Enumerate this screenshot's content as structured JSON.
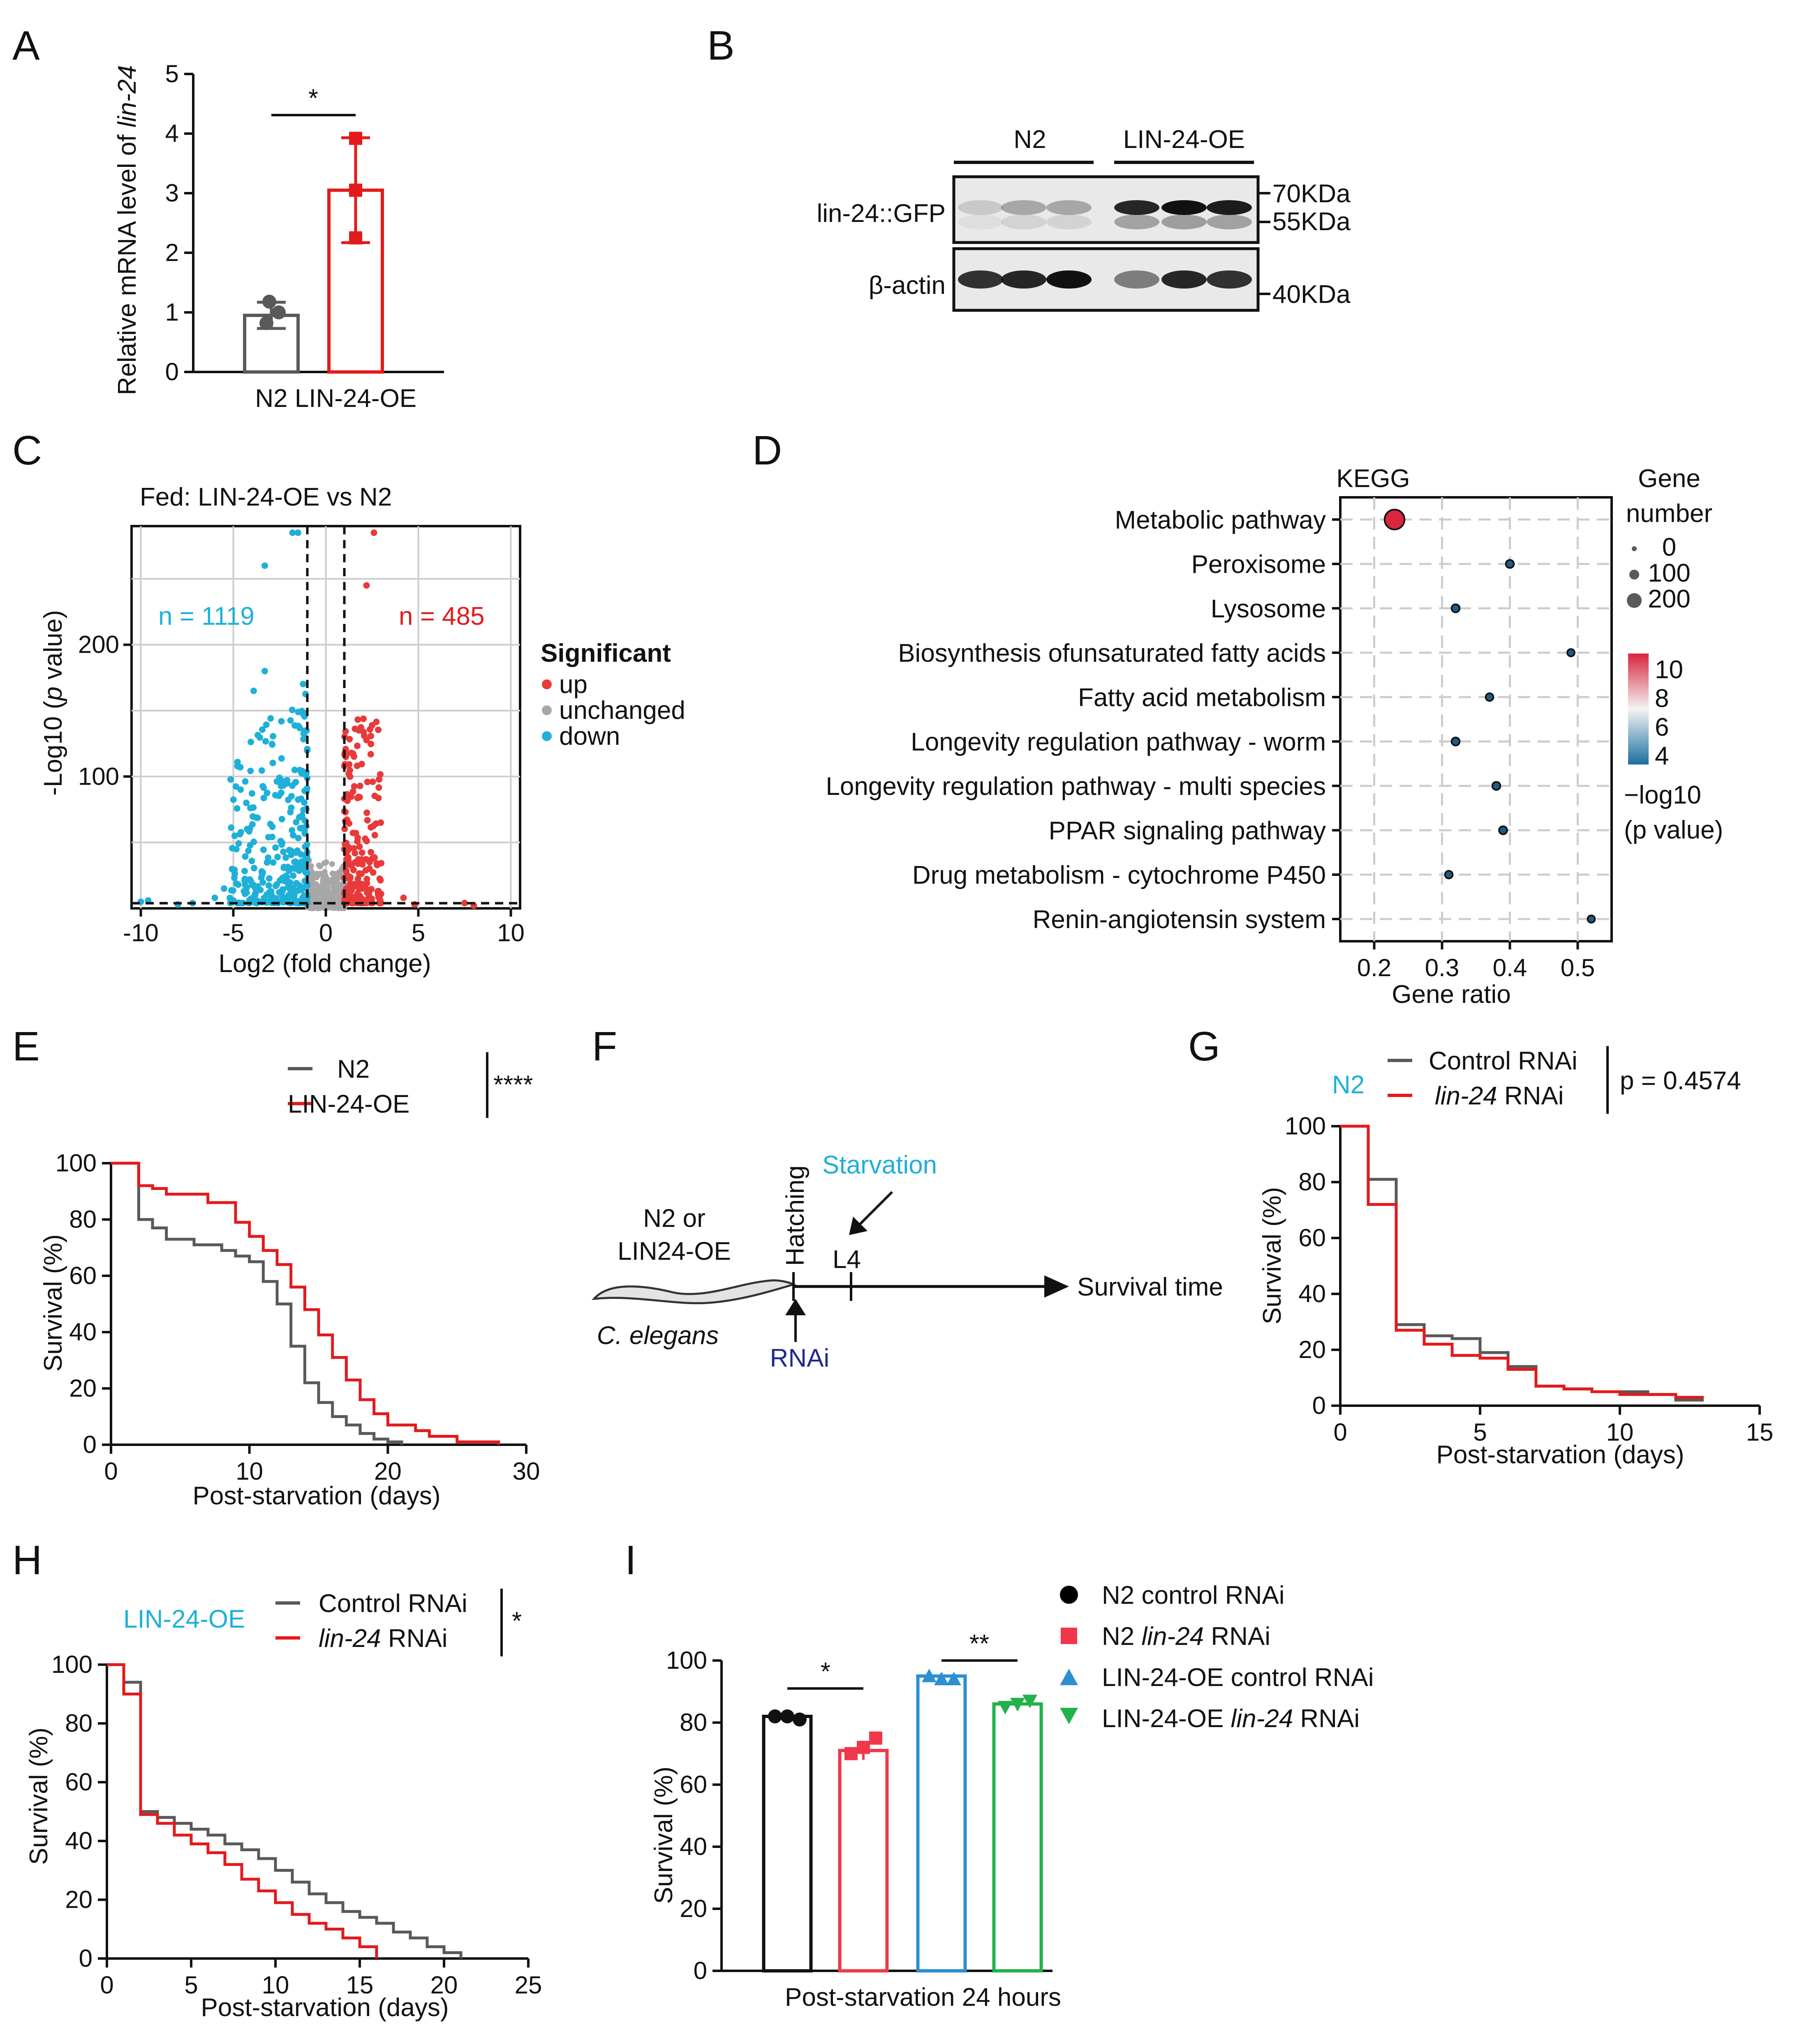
{
  "colors": {
    "n2": "#595959",
    "oe": "#e31a1c",
    "cyan": "#1fb0d8",
    "navy": "#1f2a8c",
    "green": "#21b24b",
    "blue": "#2b8fd1",
    "grid": "#cccccc"
  },
  "chart_data": [
    {
      "panel": "A",
      "type": "bar",
      "ylabel_prefix": "Relative mRNA level of ",
      "ylabel_italic": "lin-24",
      "categories": [
        "N2",
        "LIN-24-OE"
      ],
      "values": [
        0.95,
        3.05
      ],
      "errors": [
        0.22,
        0.88
      ],
      "points": [
        [
          0.82,
          1.0,
          1.18
        ],
        [
          2.25,
          3.05,
          3.92
        ]
      ],
      "ylim": [
        0,
        5
      ],
      "yticks": [
        "0",
        "1",
        "2",
        "3",
        "4",
        "5"
      ],
      "significance": "*"
    },
    {
      "panel": "B",
      "type": "western_blot",
      "groups": [
        "N2",
        "LIN-24-OE"
      ],
      "rows": [
        "lin-24::GFP",
        "β-actin"
      ],
      "markers": [
        "70KDa",
        "55KDa",
        "40KDa"
      ],
      "band_intensity": {
        "lin-24::GFP": [
          0.15,
          0.3,
          0.3,
          0.9,
          1.0,
          0.95
        ],
        "β-actin": [
          0.85,
          0.9,
          1.0,
          0.5,
          0.9,
          0.85
        ]
      }
    },
    {
      "panel": "C",
      "type": "scatter",
      "title": "Fed: LIN-24-OE vs N2",
      "xlabel": "Log2 (fold change)",
      "ylabel_prefix": "-Log10 (",
      "ylabel_italic": "p",
      "ylabel_suffix": " value)",
      "xlim": [
        -10.5,
        10.5
      ],
      "ylim": [
        0,
        290
      ],
      "xticks": [
        "-10",
        "-5",
        "0",
        "5",
        "10"
      ],
      "yticks": [
        "100",
        "200"
      ],
      "n_down": "n = 1119",
      "n_up": "n = 485",
      "legend_title": "Significant",
      "legend": [
        "up",
        "unchanged",
        "down"
      ],
      "thresholds": {
        "log2fc": [
          -1,
          1
        ],
        "neglog10p": 1.3
      }
    },
    {
      "panel": "D",
      "type": "dot",
      "title": "KEGG",
      "xlabel": "Gene ratio",
      "xlim": [
        0.15,
        0.55
      ],
      "xticks": [
        "0.2",
        "0.3",
        "0.4",
        "0.5"
      ],
      "categories": [
        "Metabolic pathway",
        "Peroxisome",
        "Lysosome",
        "Biosynthesis ofunsaturated fatty acids",
        "Fatty acid metabolism",
        "Longevity regulation pathway - worm",
        "Longevity regulation pathway - multi species",
        "PPAR signaling pathway",
        "Drug metabolism - cytochrome P450",
        "Renin-angiotensin system"
      ],
      "gene_ratio": [
        0.23,
        0.4,
        0.32,
        0.49,
        0.37,
        0.32,
        0.38,
        0.39,
        0.31,
        0.52
      ],
      "gene_number": [
        180,
        20,
        20,
        10,
        15,
        20,
        20,
        20,
        15,
        10
      ],
      "neglog10p": [
        10.5,
        4.5,
        4.5,
        4.0,
        4.0,
        4.0,
        4.0,
        4.0,
        4.0,
        4.0
      ],
      "size_legend_title": [
        "Gene",
        "number"
      ],
      "size_legend": [
        "0",
        "100",
        "200"
      ],
      "color_legend": [
        "10",
        "8",
        "6",
        "4"
      ],
      "color_legend_title": [
        "−log10",
        "(p value)"
      ]
    },
    {
      "panel": "E",
      "type": "line",
      "xlabel": "Post-starvation (days)",
      "ylabel": "Survival (%)",
      "xlim": [
        0,
        30
      ],
      "ylim": [
        0,
        100
      ],
      "xticks": [
        "0",
        "10",
        "20",
        "30"
      ],
      "yticks": [
        "0",
        "20",
        "40",
        "60",
        "80",
        "100"
      ],
      "significance": "****",
      "series": [
        {
          "name": "N2",
          "x": [
            0,
            2,
            3,
            4,
            6,
            8,
            9,
            10,
            11,
            12,
            13,
            14,
            15,
            16,
            17,
            18,
            19,
            20,
            21
          ],
          "y": [
            100,
            80,
            77,
            73,
            71,
            69,
            67,
            65,
            58,
            50,
            35,
            22,
            15,
            10,
            7,
            4,
            2,
            1,
            0
          ]
        },
        {
          "name": "LIN-24-OE",
          "x": [
            0,
            2,
            3,
            4,
            7,
            9,
            10,
            11,
            12,
            13,
            14,
            15,
            16,
            17,
            18,
            19,
            20,
            22,
            23,
            25,
            28
          ],
          "y": [
            100,
            92,
            91,
            89,
            86,
            79,
            74,
            69,
            64,
            56,
            48,
            39,
            31,
            23,
            16,
            11,
            7,
            5,
            3,
            1,
            0
          ]
        }
      ]
    },
    {
      "panel": "F",
      "type": "schematic",
      "worm_label": [
        "N2 or",
        "LIN24-OE"
      ],
      "species": "C. elegans",
      "hatching": "Hatching",
      "starvation": "Starvation",
      "stage": "L4",
      "rnai": "RNAi",
      "outcome": "Survival time"
    },
    {
      "panel": "G",
      "type": "line",
      "strain": "N2",
      "xlabel": "Post-starvation (days)",
      "ylabel": "Survival (%)",
      "xlim": [
        0,
        15
      ],
      "ylim": [
        0,
        100
      ],
      "xticks": [
        "0",
        "5",
        "10",
        "15"
      ],
      "yticks": [
        "0",
        "20",
        "40",
        "60",
        "80",
        "100"
      ],
      "pvalue": "p = 0.4574",
      "series": [
        {
          "name": "Control RNAi",
          "x": [
            0,
            1,
            2,
            3,
            4,
            5,
            6,
            7,
            8,
            9,
            10,
            11,
            12,
            13
          ],
          "y": [
            100,
            81,
            29,
            25,
            24,
            19,
            14,
            7,
            6,
            5,
            5,
            4,
            2,
            2
          ]
        },
        {
          "name": "lin-24 RNAi",
          "x": [
            0,
            1,
            2,
            3,
            4,
            5,
            6,
            7,
            8,
            9,
            10,
            11,
            12,
            13
          ],
          "y": [
            100,
            72,
            27,
            22,
            18,
            17,
            13,
            7,
            6,
            5,
            4,
            4,
            3,
            3
          ]
        }
      ]
    },
    {
      "panel": "H",
      "type": "line",
      "strain": "LIN-24-OE",
      "xlabel": "Post-starvation (days)",
      "ylabel": "Survival (%)",
      "xlim": [
        0,
        25
      ],
      "ylim": [
        0,
        100
      ],
      "xticks": [
        "0",
        "5",
        "10",
        "15",
        "20",
        "25"
      ],
      "yticks": [
        "0",
        "20",
        "40",
        "60",
        "80",
        "100"
      ],
      "significance": "*",
      "series": [
        {
          "name": "Control RNAi",
          "x": [
            0,
            1,
            2,
            3,
            4,
            5,
            6,
            7,
            8,
            9,
            10,
            11,
            12,
            13,
            14,
            15,
            16,
            17,
            18,
            19,
            20,
            21
          ],
          "y": [
            100,
            94,
            50,
            48,
            46,
            44,
            42,
            39,
            37,
            34,
            30,
            26,
            22,
            19,
            16,
            14,
            12,
            9,
            7,
            4,
            2,
            0
          ]
        },
        {
          "name": "lin-24 RNAi",
          "x": [
            0,
            1,
            2,
            3,
            4,
            5,
            6,
            7,
            8,
            9,
            10,
            11,
            12,
            13,
            14,
            15,
            16
          ],
          "y": [
            100,
            90,
            49,
            46,
            42,
            39,
            36,
            32,
            27,
            23,
            19,
            15,
            12,
            10,
            7,
            4,
            0
          ]
        }
      ]
    },
    {
      "panel": "I",
      "type": "bar",
      "xlabel": "Post-starvation 24 hours",
      "ylabel": "Survival (%)",
      "ylim": [
        0,
        100
      ],
      "yticks": [
        "0",
        "20",
        "40",
        "60",
        "80",
        "100"
      ],
      "categories": [
        "N2 control RNAi",
        "N2 lin-24 RNAi",
        "LIN-24-OE control RNAi",
        "LIN-24-OE lin-24 RNAi"
      ],
      "values": [
        82,
        71,
        95,
        86
      ],
      "errors": [
        1,
        3,
        1,
        2
      ],
      "points": [
        [
          82,
          82,
          81
        ],
        [
          70,
          72,
          75
        ],
        [
          95,
          94,
          94
        ],
        [
          85,
          86,
          87
        ]
      ],
      "significance": [
        "*",
        "**"
      ]
    }
  ]
}
